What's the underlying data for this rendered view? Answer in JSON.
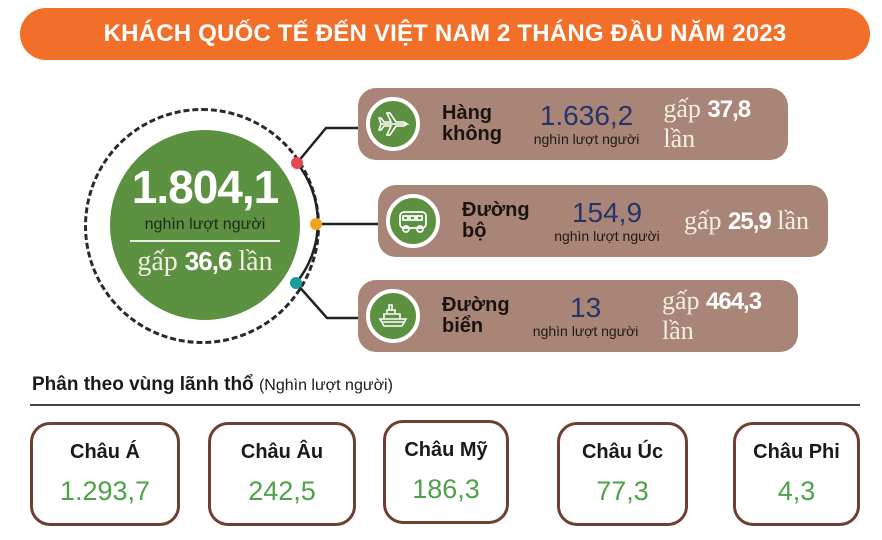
{
  "title": "KHÁCH QUỐC TẾ ĐẾN VIỆT NAM 2 THÁNG ĐẦU NĂM 2023",
  "total": {
    "value": "1.804,1",
    "unit": "nghìn lượt người",
    "gap_prefix": "gấp",
    "gap_value": "36,6",
    "gap_suffix": "lần"
  },
  "modes": [
    {
      "name1": "Hàng",
      "name2": "không",
      "value": "1.636,2",
      "unit": "nghìn lượt người",
      "gap_prefix": "gấp",
      "gap_value": "37,8",
      "gap_suffix": "lần",
      "icon": "airplane-icon",
      "dot_color": "#e8474f"
    },
    {
      "name1": "Đường",
      "name2": "bộ",
      "value": "154,9",
      "unit": "nghìn lượt người",
      "gap_prefix": "gấp",
      "gap_value": "25,9",
      "gap_suffix": "lần",
      "icon": "bus-icon",
      "dot_color": "#f4a21c"
    },
    {
      "name1": "Đường",
      "name2": "biển",
      "value": "13",
      "unit": "nghìn lượt người",
      "gap_prefix": "gấp",
      "gap_value": "464,3",
      "gap_suffix": "lần",
      "icon": "ship-icon",
      "dot_color": "#1a9c9a"
    }
  ],
  "regions_title": "Phân theo vùng lãnh thổ",
  "regions_unit": "(Nghìn lượt người)",
  "regions": [
    {
      "name": "Châu Á",
      "value": "1.293,7"
    },
    {
      "name": "Châu Âu",
      "value": "242,5"
    },
    {
      "name": "Châu Mỹ",
      "value": "186,3"
    },
    {
      "name": "Châu Úc",
      "value": "77,3"
    },
    {
      "name": "Châu Phi",
      "value": "4,3"
    }
  ],
  "colors": {
    "header": "#f26f2a",
    "green": "#5b9140",
    "card": "#a98578",
    "box_border": "#6e3f33",
    "value_green": "#4fa24a"
  }
}
